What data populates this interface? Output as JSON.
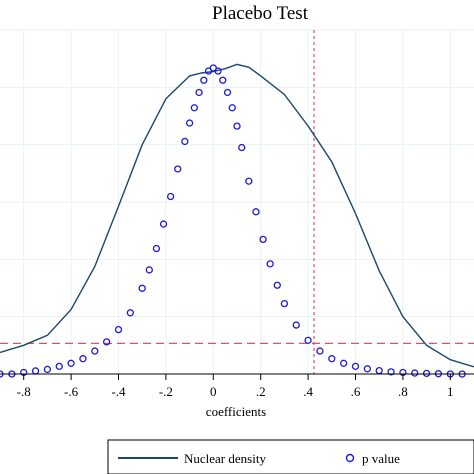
{
  "chart_data": {
    "type": "line",
    "title": "Placebo Test",
    "xlabel": "coefficients",
    "ylabel": "",
    "xlim": [
      -0.9,
      1.1
    ],
    "xticks": [
      -0.8,
      -0.6,
      -0.4,
      -0.2,
      0,
      0.2,
      0.4,
      0.6,
      0.8,
      1
    ],
    "xtick_labels": [
      "-.8",
      "-.6",
      "-.4",
      "-.2",
      "0",
      ".2",
      ".4",
      ".6",
      ".8",
      "1"
    ],
    "ylim_density": [
      0,
      2.4
    ],
    "ylim_p": [
      0,
      1.0
    ],
    "grid": true,
    "legend_position": "bottom",
    "series": [
      {
        "name": "Nuclear density",
        "type": "line",
        "color": "#1a476f",
        "x": [
          -0.9,
          -0.8,
          -0.7,
          -0.6,
          -0.5,
          -0.4,
          -0.3,
          -0.2,
          -0.1,
          -0.05,
          0,
          0.05,
          0.1,
          0.15,
          0.2,
          0.3,
          0.4,
          0.5,
          0.6,
          0.7,
          0.8,
          0.9,
          1.0,
          1.1
        ],
        "y": [
          0.15,
          0.2,
          0.27,
          0.45,
          0.75,
          1.17,
          1.6,
          1.92,
          2.08,
          2.1,
          2.11,
          2.13,
          2.16,
          2.14,
          2.08,
          1.95,
          1.73,
          1.48,
          1.12,
          0.72,
          0.4,
          0.2,
          0.1,
          0.05
        ]
      },
      {
        "name": "p value",
        "type": "scatter",
        "color": "#1a1adc",
        "x": [
          -0.9,
          -0.85,
          -0.8,
          -0.75,
          -0.7,
          -0.65,
          -0.6,
          -0.55,
          -0.5,
          -0.45,
          -0.4,
          -0.35,
          -0.3,
          -0.27,
          -0.24,
          -0.21,
          -0.18,
          -0.15,
          -0.12,
          -0.1,
          -0.08,
          -0.06,
          -0.04,
          -0.02,
          0,
          0.02,
          0.04,
          0.06,
          0.08,
          0.1,
          0.12,
          0.15,
          0.18,
          0.21,
          0.24,
          0.27,
          0.3,
          0.35,
          0.4,
          0.45,
          0.5,
          0.55,
          0.6,
          0.65,
          0.7,
          0.75,
          0.8,
          0.85,
          0.9,
          0.95,
          1.0,
          1.05
        ],
        "y": [
          0.0,
          0.0,
          0.005,
          0.01,
          0.015,
          0.025,
          0.035,
          0.05,
          0.075,
          0.105,
          0.145,
          0.2,
          0.28,
          0.34,
          0.41,
          0.49,
          0.58,
          0.67,
          0.76,
          0.82,
          0.87,
          0.92,
          0.96,
          0.99,
          1.0,
          0.99,
          0.96,
          0.92,
          0.87,
          0.81,
          0.74,
          0.63,
          0.53,
          0.44,
          0.36,
          0.29,
          0.23,
          0.16,
          0.11,
          0.075,
          0.05,
          0.035,
          0.025,
          0.017,
          0.011,
          0.007,
          0.005,
          0.003,
          0.002,
          0.001,
          0.0,
          0.0
        ]
      }
    ],
    "reference_lines": {
      "vertical_x": 0.425,
      "horizontal_p": 0.1,
      "color": "#d9516b"
    },
    "gridline_density_values": [
      0.4,
      0.8,
      1.2,
      1.6,
      2.0,
      2.4
    ]
  },
  "legend": {
    "items": [
      {
        "label": "Nuclear density"
      },
      {
        "label": "p value"
      }
    ]
  }
}
